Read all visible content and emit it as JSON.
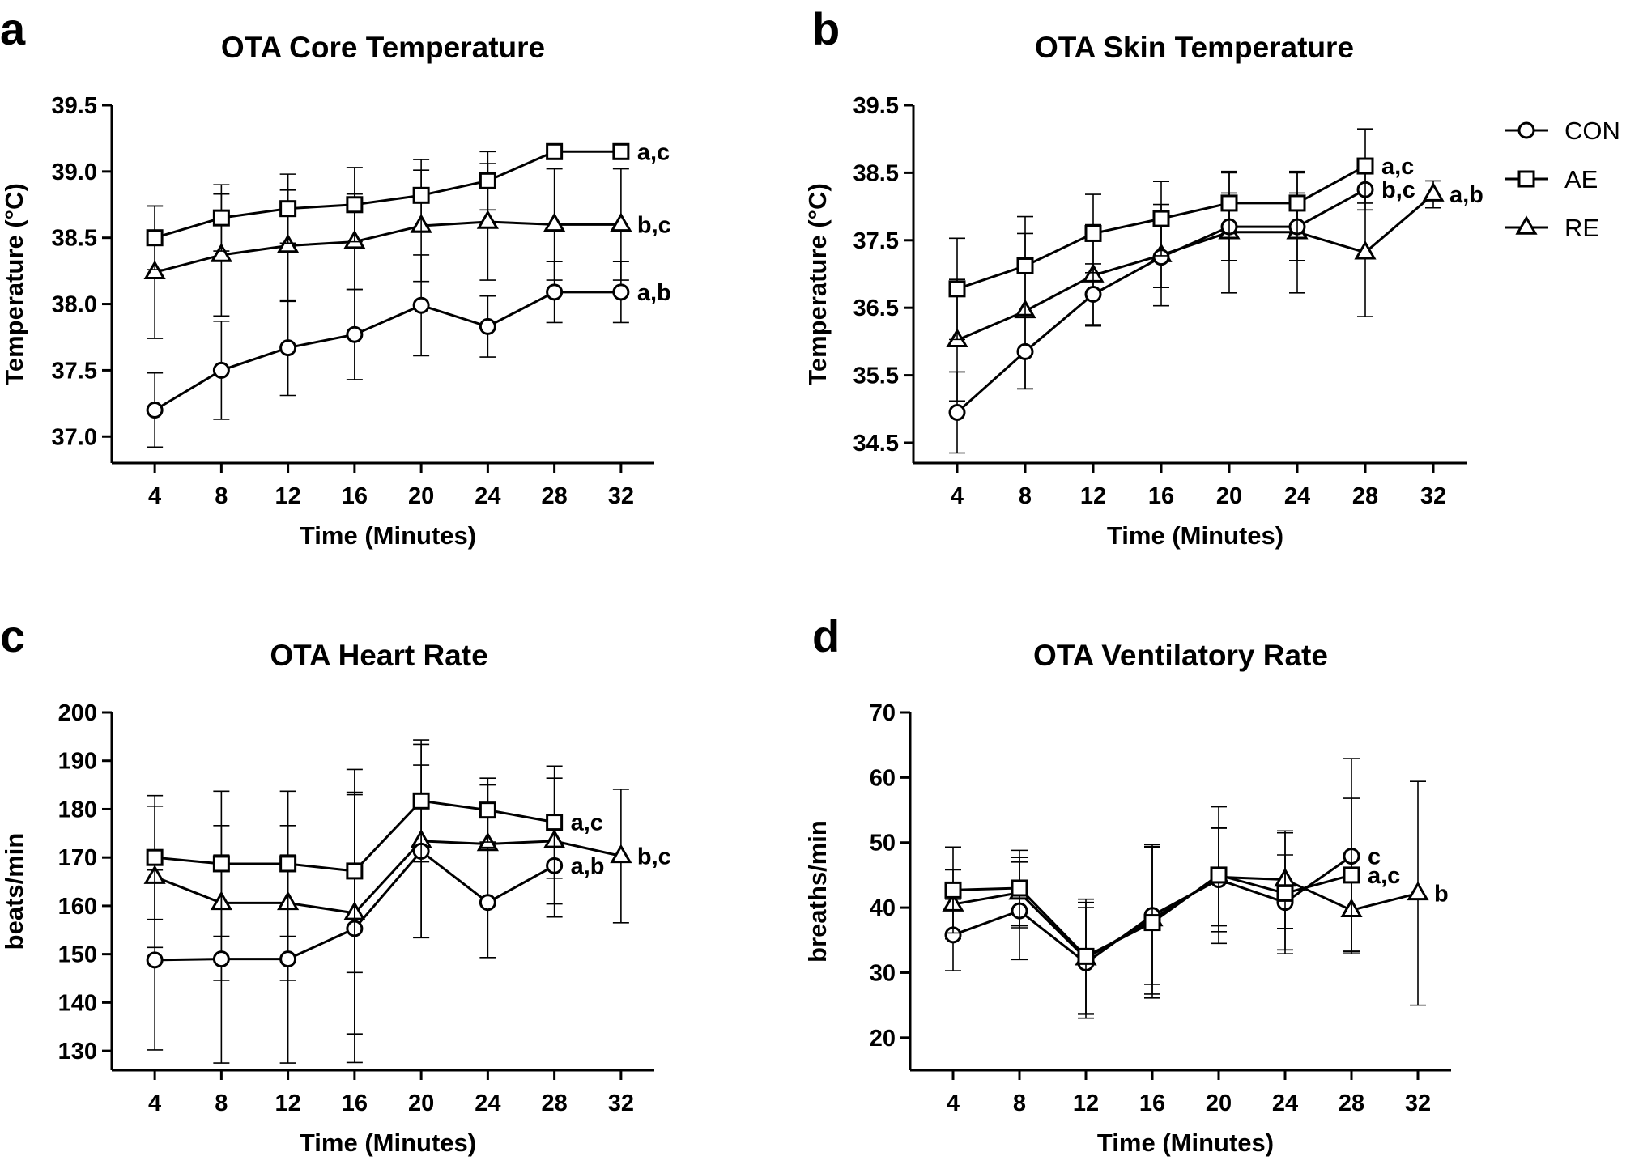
{
  "figure": {
    "legend_position": "right",
    "legend": [
      "CON",
      "AE",
      "RE"
    ]
  },
  "chart_data": [
    {
      "type": "line",
      "panel_label": "a",
      "title": "OTA Core Temperature",
      "xlabel": "Time (Minutes)",
      "ylabel": "Temperature (°C)",
      "x": [
        4,
        8,
        12,
        16,
        20,
        24,
        28,
        32
      ],
      "xlim": [
        2,
        34
      ],
      "ylim": [
        36.8,
        39.5
      ],
      "yticks": [
        37.0,
        37.5,
        38.0,
        38.5,
        39.0,
        39.5
      ],
      "ytick_decimals": 1,
      "series": [
        {
          "name": "CON",
          "marker": "circle",
          "values": [
            37.2,
            37.5,
            37.67,
            37.77,
            37.99,
            37.83,
            38.09,
            38.09
          ],
          "errors": [
            0.28,
            0.37,
            0.36,
            0.34,
            0.38,
            0.23,
            0.23,
            0.23
          ],
          "annotation": "a,b"
        },
        {
          "name": "AE",
          "marker": "square",
          "values": [
            38.5,
            38.65,
            38.72,
            38.75,
            38.82,
            38.93,
            39.15,
            39.15
          ],
          "errors": [
            0.24,
            0.25,
            0.26,
            0.28,
            0.27,
            0.22,
            0.0,
            0.0
          ],
          "annotation": "a,c"
        },
        {
          "name": "RE",
          "marker": "triangle",
          "values": [
            38.24,
            38.37,
            38.44,
            38.47,
            38.59,
            38.62,
            38.6,
            38.6
          ],
          "errors": [
            0.5,
            0.46,
            0.42,
            0.36,
            0.42,
            0.44,
            0.42,
            0.42
          ],
          "annotation": "b,c"
        }
      ]
    },
    {
      "type": "line",
      "panel_label": "b",
      "title": "OTA Skin Temperature",
      "xlabel": "Time (Minutes)",
      "ylabel": "Temperature (°C)",
      "x": [
        4,
        8,
        12,
        16,
        20,
        24,
        28,
        32
      ],
      "xlim": [
        2,
        34
      ],
      "ylim": [
        34.2,
        39.5
      ],
      "yticks": [
        34.5,
        35.5,
        36.5,
        37.5,
        38.5,
        39.5
      ],
      "ytick_decimals": 1,
      "series": [
        {
          "name": "CON",
          "marker": "circle",
          "values": [
            34.95,
            35.85,
            36.7,
            37.25,
            37.7,
            37.7,
            38.25,
            null
          ],
          "errors": [
            0.6,
            0.55,
            0.45,
            0.45,
            0.5,
            0.5,
            0.3,
            null
          ],
          "annotation": "b,c"
        },
        {
          "name": "AE",
          "marker": "square",
          "values": [
            36.78,
            37.12,
            37.6,
            37.82,
            38.05,
            38.05,
            38.6,
            null
          ],
          "errors": [
            0.75,
            0.73,
            0.58,
            0.55,
            0.45,
            0.45,
            0.55,
            null
          ],
          "annotation": "a,c"
        },
        {
          "name": "RE",
          "marker": "triangle",
          "values": [
            36.02,
            36.45,
            36.98,
            37.28,
            37.62,
            37.62,
            37.32,
            38.18
          ],
          "errors": [
            0.9,
            1.15,
            0.75,
            0.75,
            0.9,
            0.9,
            0.95,
            0.2
          ],
          "annotation": "a,b"
        }
      ]
    },
    {
      "type": "line",
      "panel_label": "c",
      "title": "OTA Heart Rate",
      "xlabel": "Time (Minutes)",
      "ylabel": "beats/min",
      "x": [
        4,
        8,
        12,
        16,
        20,
        24,
        28,
        32
      ],
      "xlim": [
        2,
        34
      ],
      "ylim": [
        126,
        200
      ],
      "yticks": [
        130,
        140,
        150,
        160,
        170,
        180,
        190,
        200
      ],
      "ytick_decimals": 0,
      "series": [
        {
          "name": "CON",
          "marker": "circle",
          "values": [
            148.8,
            149,
            149,
            155.3,
            171.3,
            160.7,
            168.3,
            null
          ],
          "errors": [
            18.6,
            21.5,
            21.5,
            27.7,
            17.8,
            11.4,
            10.6,
            null
          ],
          "annotation": "a,b"
        },
        {
          "name": "AE",
          "marker": "square",
          "values": [
            170,
            168.7,
            168.7,
            167.2,
            181.7,
            179.8,
            177.3,
            null
          ],
          "errors": [
            12.8,
            15,
            15,
            21,
            12.6,
            6.6,
            11.6,
            null
          ],
          "annotation": "a,c"
        },
        {
          "name": "RE",
          "marker": "triangle",
          "values": [
            166,
            160.6,
            160.6,
            158.5,
            173.4,
            172.8,
            173.4,
            170.3
          ],
          "errors": [
            14.6,
            16,
            16,
            25,
            20,
            12.2,
            13,
            13.8
          ],
          "annotation": "b,c"
        }
      ]
    },
    {
      "type": "line",
      "panel_label": "d",
      "title": "OTA Ventilatory Rate",
      "xlabel": "Time (Minutes)",
      "ylabel": "breaths/min",
      "x": [
        4,
        8,
        12,
        16,
        20,
        24,
        28,
        32
      ],
      "xlim": [
        2,
        34
      ],
      "ylim": [
        15,
        70
      ],
      "yticks": [
        20,
        30,
        40,
        50,
        60,
        70
      ],
      "ytick_decimals": 0,
      "series": [
        {
          "name": "CON",
          "marker": "circle",
          "values": [
            35.8,
            39.5,
            31.5,
            38.8,
            44.3,
            40.8,
            47.9,
            null
          ],
          "errors": [
            5.5,
            7.5,
            8.5,
            10.6,
            8.0,
            7.3,
            15.0,
            null
          ],
          "annotation": "c"
        },
        {
          "name": "AE",
          "marker": "square",
          "values": [
            42.7,
            43.0,
            32.5,
            37.7,
            45.0,
            42.2,
            45.0,
            null
          ],
          "errors": [
            6.6,
            5.8,
            8.8,
            11.6,
            10.5,
            9.3,
            11.8,
            null
          ],
          "annotation": "a,c"
        },
        {
          "name": "RE",
          "marker": "triangle",
          "values": [
            40.5,
            42.3,
            32.2,
            38.2,
            44.7,
            44.3,
            39.6,
            42.2
          ],
          "errors": [
            5.3,
            5.4,
            8.6,
            11.5,
            7.5,
            7.5,
            6.3,
            17.2
          ],
          "annotation": "b"
        }
      ]
    }
  ]
}
